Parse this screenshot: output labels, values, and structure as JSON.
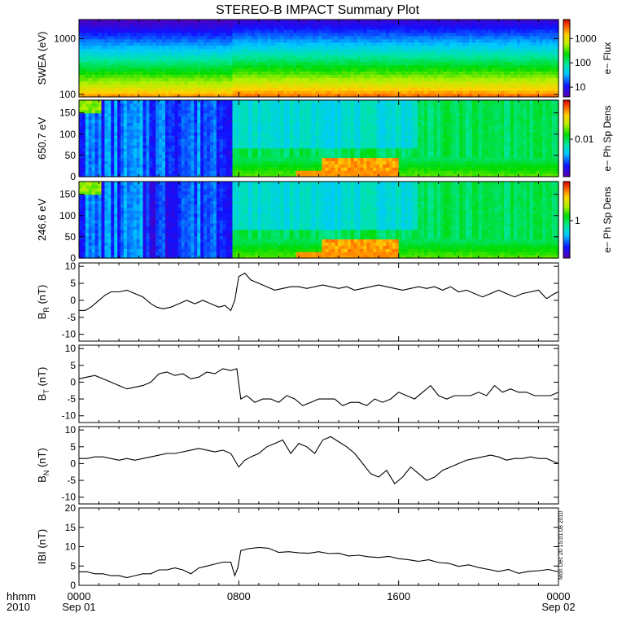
{
  "title": "STEREO-B IMPACT Summary Plot",
  "time_axis": {
    "header_left": [
      "hhmm",
      "2010"
    ],
    "ticks": [
      {
        "t": 0,
        "top": "0000",
        "bottom": "Sep 01"
      },
      {
        "t": 8,
        "top": "0800",
        "bottom": ""
      },
      {
        "t": 16,
        "top": "1600",
        "bottom": ""
      },
      {
        "t": 24,
        "top": "0000",
        "bottom": "Sep 02"
      }
    ],
    "range_hours": [
      0,
      24
    ]
  },
  "side_stamp": "Mon Dec 20 15:01:08 2010",
  "chart_data": [
    {
      "id": "swea",
      "type": "heatmap",
      "ylabel": "SWEA (eV)",
      "yscale": "log",
      "ylim": [
        90,
        2200
      ],
      "yticks": [
        100,
        1000
      ],
      "yticklabels": [
        "100",
        "1000"
      ],
      "colorbar": {
        "label": "e− Flux",
        "scale": "log",
        "range": [
          4,
          6000
        ],
        "ticks": [
          10,
          100,
          1000
        ],
        "ticklabels": [
          "10",
          "100",
          "1000"
        ]
      }
    },
    {
      "id": "pad650",
      "type": "heatmap",
      "ylabel": "650.7 eV",
      "ylim": [
        0,
        180
      ],
      "yticks": [
        0,
        50,
        100,
        150
      ],
      "colorbar": {
        "label": "e− Ph Sp Dens",
        "ticks": [
          "0.01"
        ]
      }
    },
    {
      "id": "pad246",
      "type": "heatmap",
      "ylabel": "246.6 eV",
      "ylim": [
        0,
        180
      ],
      "yticks": [
        0,
        50,
        100,
        150
      ],
      "colorbar": {
        "label": "e− Ph Sp Dens",
        "ticks": [
          "1"
        ]
      }
    },
    {
      "id": "br",
      "type": "line",
      "ylabel": "B",
      "ylabel_sub": "R",
      "ylabel_unit": " (nT)",
      "ylim": [
        -12,
        11
      ],
      "yticks": [
        -10,
        -5,
        0,
        5,
        10
      ],
      "x": [
        0,
        0.3,
        0.6,
        1,
        1.3,
        1.6,
        2,
        2.4,
        2.8,
        3.2,
        3.6,
        3.9,
        4.2,
        4.6,
        5,
        5.4,
        5.8,
        6.2,
        6.6,
        7,
        7.3,
        7.6,
        7.8,
        8,
        8.3,
        8.6,
        9,
        9.4,
        9.8,
        10.2,
        10.6,
        11,
        11.4,
        11.8,
        12.2,
        12.6,
        13,
        13.4,
        13.8,
        14.2,
        14.6,
        15,
        15.4,
        15.8,
        16.2,
        16.6,
        17,
        17.4,
        17.8,
        18.2,
        18.6,
        19,
        19.4,
        19.8,
        20.2,
        20.6,
        21,
        21.4,
        21.8,
        22.2,
        22.6,
        23,
        23.4,
        23.8,
        24
      ],
      "y": [
        -3,
        -3,
        -2,
        0,
        1.5,
        2.5,
        2.5,
        3,
        2,
        1,
        -1,
        -2,
        -2.5,
        -2,
        -1,
        0,
        -1,
        0,
        -1,
        -2,
        -1.5,
        -3,
        0,
        7,
        8,
        6,
        5,
        4,
        3,
        3.5,
        4,
        4,
        3.5,
        4,
        4.5,
        4,
        3.5,
        4,
        3,
        3.5,
        4,
        4.5,
        4,
        3.5,
        3,
        3.5,
        4,
        3.5,
        4,
        3,
        4,
        2.5,
        3,
        2,
        1,
        2,
        3,
        2,
        1,
        2,
        2.5,
        3,
        0.5,
        2,
        2.5
      ]
    },
    {
      "id": "bt",
      "type": "line",
      "ylabel": "B",
      "ylabel_sub": "T",
      "ylabel_unit": " (nT)",
      "ylim": [
        -12,
        11
      ],
      "yticks": [
        -10,
        -5,
        0,
        5,
        10
      ],
      "x": [
        0,
        0.4,
        0.8,
        1.2,
        1.6,
        2,
        2.4,
        2.8,
        3.2,
        3.6,
        4,
        4.4,
        4.8,
        5.2,
        5.6,
        6,
        6.4,
        6.8,
        7.2,
        7.6,
        7.9,
        8.1,
        8.4,
        8.8,
        9.2,
        9.6,
        10,
        10.4,
        10.8,
        11.2,
        11.6,
        12,
        12.4,
        12.8,
        13.2,
        13.6,
        14,
        14.4,
        14.8,
        15.2,
        15.6,
        16,
        16.4,
        16.8,
        17.2,
        17.6,
        18,
        18.4,
        18.8,
        19.2,
        19.6,
        20,
        20.4,
        20.8,
        21.2,
        21.6,
        22,
        22.4,
        22.8,
        23.2,
        23.6,
        24
      ],
      "y": [
        1,
        1.5,
        2,
        1,
        0,
        -1,
        -2,
        -1.5,
        -1,
        0,
        2.5,
        3,
        2,
        2.5,
        1,
        1.5,
        3,
        2.5,
        4,
        3.5,
        4,
        -5,
        -4,
        -6,
        -5,
        -5,
        -6,
        -4,
        -5,
        -7,
        -6,
        -5,
        -5,
        -5,
        -7,
        -6,
        -6,
        -7,
        -5,
        -6,
        -5,
        -3,
        -4,
        -5,
        -3,
        -1,
        -4,
        -5,
        -4,
        -4,
        -4,
        -3,
        -4,
        -1,
        -3,
        -2,
        -3,
        -3,
        -4,
        -4,
        -4,
        -3
      ]
    },
    {
      "id": "bn",
      "type": "line",
      "ylabel": "B",
      "ylabel_sub": "N",
      "ylabel_unit": " (nT)",
      "ylim": [
        -12,
        11
      ],
      "yticks": [
        -10,
        -5,
        0,
        5,
        10
      ],
      "x": [
        0,
        0.4,
        0.8,
        1.2,
        1.6,
        2,
        2.4,
        2.8,
        3.2,
        3.6,
        4,
        4.4,
        4.8,
        5.2,
        5.6,
        6,
        6.4,
        6.8,
        7.2,
        7.6,
        8,
        8.3,
        8.6,
        9,
        9.4,
        9.8,
        10.2,
        10.6,
        11,
        11.4,
        11.8,
        12.2,
        12.6,
        13,
        13.4,
        13.8,
        14.2,
        14.6,
        15,
        15.4,
        15.8,
        16.2,
        16.6,
        17,
        17.4,
        17.8,
        18.2,
        18.6,
        19,
        19.4,
        19.8,
        20.2,
        20.6,
        21,
        21.4,
        21.8,
        22.2,
        22.6,
        23,
        23.4,
        23.8,
        24
      ],
      "y": [
        1.5,
        1.5,
        2,
        2,
        1.5,
        1,
        1.5,
        1,
        1.5,
        2,
        2.5,
        3,
        3,
        3.5,
        4,
        4.5,
        4,
        3.5,
        4,
        3,
        -1,
        1,
        2,
        3,
        5,
        6,
        7,
        3,
        6,
        5,
        3,
        7,
        8,
        6.5,
        5,
        3,
        0,
        -3,
        -4,
        -2,
        -6,
        -4,
        -1,
        -3,
        -5,
        -4,
        -2,
        -1,
        0,
        1,
        1.5,
        2,
        2.5,
        2,
        1,
        1.5,
        1.5,
        2,
        1.5,
        1.5,
        0.5,
        0
      ]
    },
    {
      "id": "bmag",
      "type": "line",
      "ylabel": "IBI (nT)",
      "ylim": [
        0,
        20
      ],
      "yticks": [
        0,
        5,
        10,
        15,
        20
      ],
      "x": [
        0,
        0.4,
        0.8,
        1.2,
        1.6,
        2,
        2.4,
        2.8,
        3.2,
        3.6,
        4,
        4.4,
        4.8,
        5.2,
        5.6,
        6,
        6.4,
        6.8,
        7.2,
        7.6,
        7.8,
        7.95,
        8.1,
        8.5,
        9,
        9.5,
        10,
        10.5,
        11,
        11.5,
        12,
        12.5,
        13,
        13.5,
        14,
        14.5,
        15,
        15.5,
        16,
        16.5,
        17,
        17.5,
        18,
        18.5,
        19,
        19.5,
        20,
        20.5,
        21,
        21.5,
        22,
        22.5,
        23,
        23.5,
        24
      ],
      "y": [
        3.5,
        3.5,
        3,
        3,
        2.5,
        2.5,
        2,
        2.5,
        3,
        3,
        4,
        4,
        4.5,
        4,
        3,
        4.5,
        5,
        5.5,
        6,
        6,
        2.5,
        4.5,
        9,
        9.5,
        9.8,
        9.6,
        8.5,
        8.7,
        8.4,
        8.3,
        8.7,
        8.2,
        8.3,
        7.6,
        7.8,
        7.4,
        7.2,
        7.5,
        6.9,
        6.6,
        6.2,
        6.6,
        5.9,
        5.7,
        4.9,
        5.3,
        4.6,
        4.1,
        3.6,
        4.1,
        3.1,
        3.6,
        3.8,
        4.1,
        3.5
      ]
    }
  ]
}
